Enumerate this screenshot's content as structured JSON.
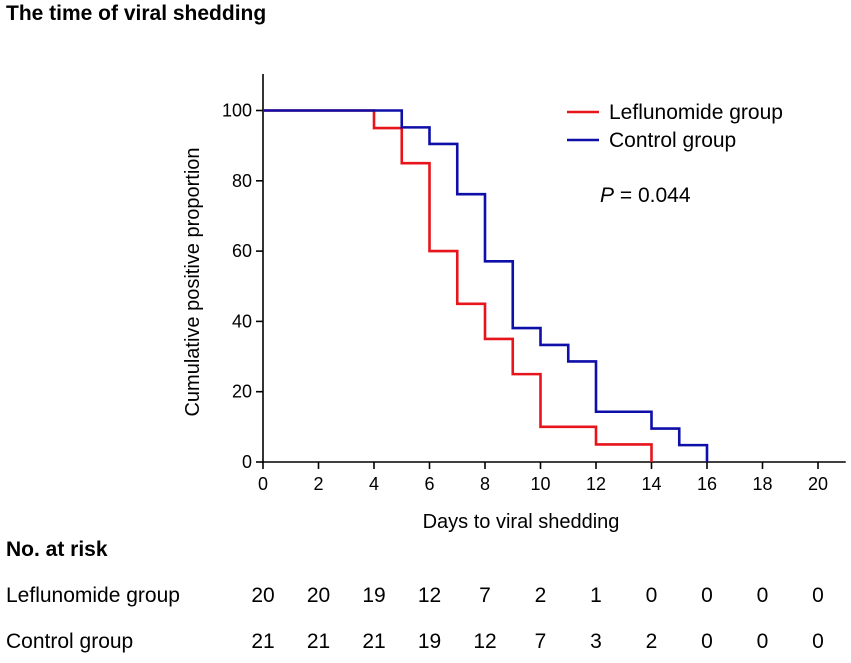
{
  "title": "The time of viral shedding",
  "chart_data": {
    "type": "line",
    "subtype": "kaplan-meier-step",
    "xlabel": "Days to viral shedding",
    "ylabel": "Cumulative positive proportion",
    "xlim": [
      0,
      21
    ],
    "ylim": [
      0,
      110
    ],
    "xticks": [
      0,
      2,
      4,
      6,
      8,
      10,
      12,
      14,
      16,
      18,
      20
    ],
    "yticks": [
      0,
      20,
      40,
      60,
      80,
      100
    ],
    "legend_position": "top-right",
    "series": [
      {
        "name": "Leflunomide group",
        "color": "#e8141b",
        "points": [
          [
            0,
            100
          ],
          [
            4,
            100
          ],
          [
            4,
            95
          ],
          [
            5,
            95
          ],
          [
            5,
            85
          ],
          [
            6,
            85
          ],
          [
            6,
            60
          ],
          [
            7,
            60
          ],
          [
            7,
            45
          ],
          [
            8,
            45
          ],
          [
            8,
            35
          ],
          [
            9,
            35
          ],
          [
            9,
            25
          ],
          [
            10,
            25
          ],
          [
            10,
            10
          ],
          [
            12,
            10
          ],
          [
            12,
            5
          ],
          [
            14,
            5
          ],
          [
            14,
            0
          ]
        ]
      },
      {
        "name": "Control group",
        "color": "#0e0fa8",
        "points": [
          [
            0,
            100
          ],
          [
            5,
            100
          ],
          [
            5,
            95.2
          ],
          [
            6,
            95.2
          ],
          [
            6,
            90.5
          ],
          [
            7,
            90.5
          ],
          [
            7,
            76.2
          ],
          [
            8,
            76.2
          ],
          [
            8,
            57.1
          ],
          [
            9,
            57.1
          ],
          [
            9,
            38.1
          ],
          [
            10,
            38.1
          ],
          [
            10,
            33.3
          ],
          [
            11,
            33.3
          ],
          [
            11,
            28.6
          ],
          [
            12,
            28.6
          ],
          [
            12,
            14.3
          ],
          [
            14,
            14.3
          ],
          [
            14,
            9.5
          ],
          [
            15,
            9.5
          ],
          [
            15,
            4.8
          ],
          [
            16,
            4.8
          ],
          [
            16,
            0
          ]
        ]
      }
    ],
    "annotation": {
      "italic": "P",
      "text": " = 0.044"
    }
  },
  "risk_table": {
    "heading": "No. at risk",
    "days": [
      0,
      2,
      4,
      6,
      8,
      10,
      12,
      14,
      16,
      18,
      20
    ],
    "rows": [
      {
        "label": "Leflunomide group",
        "values": [
          "20",
          "20",
          "19",
          "12",
          "7",
          "2",
          "1",
          "0",
          "0",
          "0",
          "0"
        ]
      },
      {
        "label": "Control group",
        "values": [
          "21",
          "21",
          "21",
          "19",
          "12",
          "7",
          "3",
          "2",
          "0",
          "0",
          "0"
        ]
      }
    ]
  }
}
